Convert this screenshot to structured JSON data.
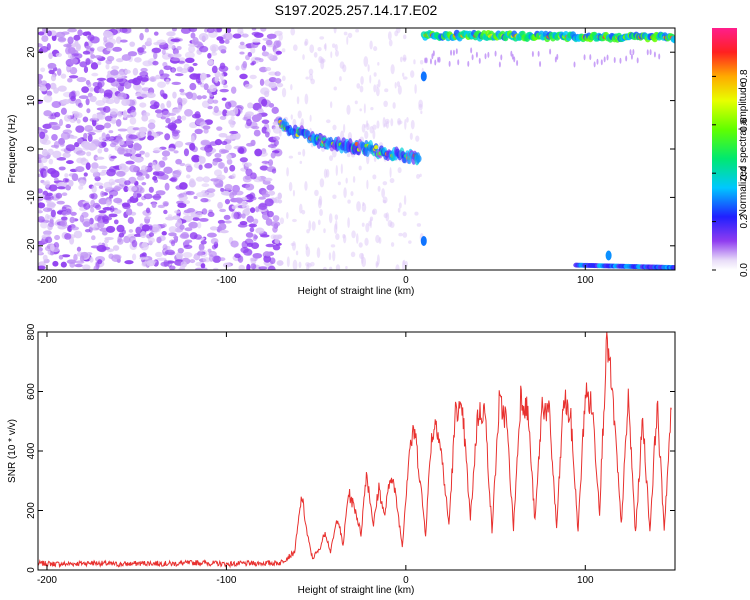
{
  "title": "S197.2025.257.14.17.E02",
  "colors": {
    "snr_line": "#e8312f",
    "axis": "#000000",
    "background": "#ffffff"
  },
  "chart_data": [
    {
      "type": "heatmap",
      "name": "spectrogram",
      "xlabel": "Height of straight line (km)",
      "ylabel": "Frequency (Hz)",
      "xlim": [
        -205,
        150
      ],
      "ylim": [
        -25,
        25
      ],
      "xticks": [
        -200,
        -100,
        0,
        100
      ],
      "xtick_labels": [
        "-200",
        "-100",
        "0",
        "100"
      ],
      "yticks": [
        -20,
        -10,
        0,
        10,
        20
      ],
      "ytick_labels": [
        "-20",
        "-10",
        "0",
        "10",
        "20"
      ],
      "colorbar": {
        "label": "Normalized spectral amplitude",
        "range": [
          0,
          1
        ],
        "ticks": [
          0.0,
          0.2,
          0.4,
          0.6,
          0.8
        ],
        "tick_labels": [
          "0.0",
          "0.2",
          "0.4",
          "0.6",
          "0.8"
        ],
        "colormap": "rainbow (purple→blue→cyan→green→yellow→red→magenta)"
      },
      "features": [
        {
          "description": "broadband noise",
          "x_range": [
            -205,
            -70
          ],
          "freq_range": [
            -25,
            25
          ],
          "amplitude": 0.05
        },
        {
          "description": "descending doppler trace",
          "points": [
            [
              -70,
              5
            ],
            [
              -60,
              3.5
            ],
            [
              -50,
              2
            ],
            [
              -40,
              1
            ],
            [
              -30,
              0.5
            ],
            [
              -20,
              0
            ],
            [
              -10,
              -1
            ],
            [
              0,
              -1.5
            ],
            [
              8,
              -2
            ]
          ],
          "amplitude": 0.5
        },
        {
          "description": "upper alias trace",
          "x_range": [
            10,
            150
          ],
          "freq": [
            23.5,
            23.0
          ],
          "amplitude": 0.7
        },
        {
          "description": "lower alias trace",
          "x_range": [
            95,
            150
          ],
          "freq": [
            -24,
            -24.5
          ],
          "amplitude": 0.4
        }
      ]
    },
    {
      "type": "line",
      "name": "snr",
      "xlabel": "Height of straight line (km)",
      "ylabel": "SNR (10 * v/v)",
      "xlim": [
        -205,
        150
      ],
      "ylim": [
        0,
        800
      ],
      "xticks": [
        -200,
        -100,
        0,
        100
      ],
      "xtick_labels": [
        "-200",
        "-100",
        "0",
        "100"
      ],
      "yticks": [
        0,
        200,
        400,
        600,
        800
      ],
      "ytick_labels": [
        "0",
        "200",
        "400",
        "600",
        "800"
      ],
      "series": [
        {
          "name": "SNR",
          "x": [
            -205,
            -190,
            -175,
            -160,
            -145,
            -130,
            -115,
            -100,
            -85,
            -70,
            -62,
            -58,
            -55,
            -52,
            -48,
            -45,
            -42,
            -38,
            -35,
            -32,
            -28,
            -25,
            -22,
            -18,
            -15,
            -12,
            -8,
            -5,
            -2,
            2,
            5,
            8,
            11,
            14,
            17,
            20,
            24,
            28,
            32,
            36,
            40,
            44,
            48,
            52,
            56,
            60,
            64,
            68,
            72,
            76,
            80,
            84,
            88,
            92,
            96,
            100,
            104,
            108,
            112,
            116,
            120,
            124,
            128,
            132,
            136,
            140,
            144,
            148
          ],
          "y": [
            22,
            20,
            24,
            19,
            23,
            21,
            25,
            20,
            22,
            24,
            60,
            250,
            120,
            40,
            70,
            130,
            60,
            180,
            80,
            260,
            200,
            120,
            330,
            150,
            280,
            180,
            330,
            220,
            80,
            410,
            470,
            300,
            120,
            430,
            510,
            380,
            150,
            560,
            500,
            170,
            520,
            540,
            130,
            560,
            510,
            140,
            590,
            530,
            160,
            560,
            520,
            140,
            580,
            500,
            130,
            600,
            540,
            200,
            790,
            520,
            150,
            580,
            120,
            510,
            130,
            560,
            140,
            540
          ]
        }
      ]
    }
  ]
}
